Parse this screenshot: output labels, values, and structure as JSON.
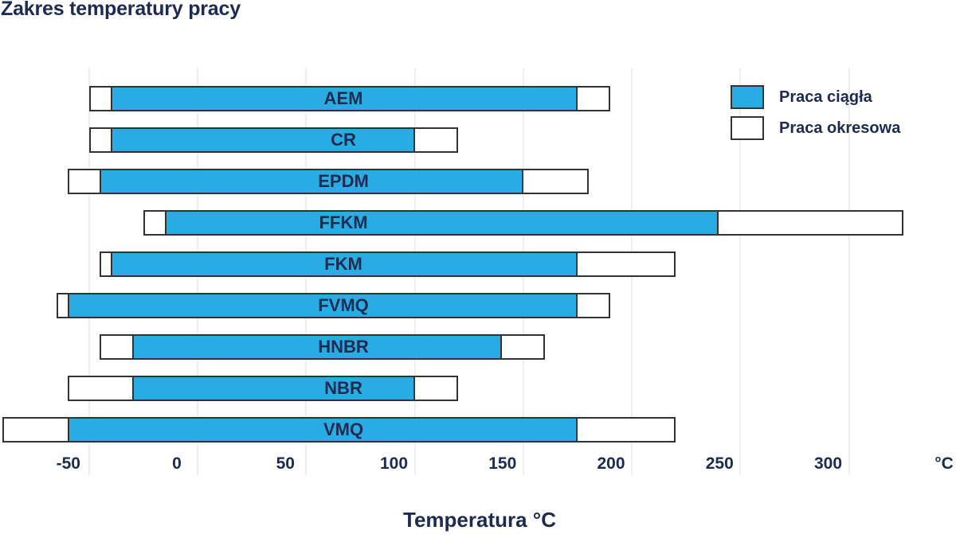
{
  "colors": {
    "continuous_fill": "#29ACE3",
    "intermittent_fill": "#FFFFFF",
    "bar_border": "#333333",
    "text": "#1D2B50",
    "gridline": "#EFEDF1",
    "background": "#FFFFFF"
  },
  "chart_data": {
    "type": "bar",
    "orientation": "horizontal-range",
    "title": "Zakres temperatury pracy",
    "xlabel": "Temperatura °C",
    "x_unit": "°C",
    "xlim": [
      -91,
      347
    ],
    "x_ticks": [
      -50,
      0,
      50,
      100,
      150,
      200,
      250,
      300
    ],
    "grid": true,
    "legend_position": "top-right",
    "legend": [
      {
        "key": "ciagla",
        "label": "Praca ciągła",
        "color": "#29ACE3"
      },
      {
        "key": "okresowa",
        "label": "Praca okresowa",
        "color": "#FFFFFF"
      }
    ],
    "materials": [
      {
        "label": "AEM",
        "okresowa": [
          -50,
          190
        ],
        "ciagla": [
          -40,
          175
        ]
      },
      {
        "label": "CR",
        "okresowa": [
          -50,
          120
        ],
        "ciagla": [
          -40,
          100
        ]
      },
      {
        "label": "EPDM",
        "okresowa": [
          -60,
          180
        ],
        "ciagla": [
          -45,
          150
        ]
      },
      {
        "label": "FFKM",
        "okresowa": [
          -25,
          325
        ],
        "ciagla": [
          -15,
          240
        ]
      },
      {
        "label": "FKM",
        "okresowa": [
          -45,
          220
        ],
        "ciagla": [
          -40,
          175
        ]
      },
      {
        "label": "FVMQ",
        "okresowa": [
          -65,
          190
        ],
        "ciagla": [
          -60,
          175
        ]
      },
      {
        "label": "HNBR",
        "okresowa": [
          -45,
          160
        ],
        "ciagla": [
          -30,
          140
        ]
      },
      {
        "label": "NBR",
        "okresowa": [
          -60,
          120
        ],
        "ciagla": [
          -30,
          100
        ]
      },
      {
        "label": "VMQ",
        "okresowa": [
          -90,
          220
        ],
        "ciagla": [
          -60,
          175
        ]
      }
    ]
  }
}
